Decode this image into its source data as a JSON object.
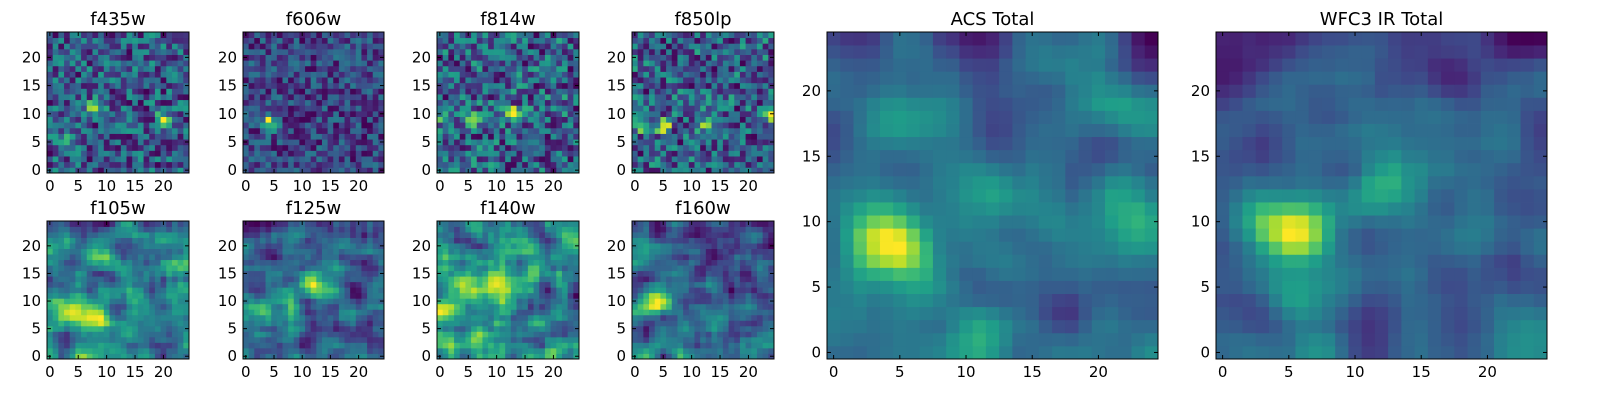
{
  "chart_data": {
    "type": "heatmap",
    "colormap": "viridis",
    "grid_size": [
      25,
      25
    ],
    "panels": [
      {
        "title": "f435w",
        "xticks": [
          0,
          5,
          10,
          15,
          20
        ],
        "yticks": [
          0,
          5,
          10,
          15,
          20
        ],
        "xlim": [
          -0.5,
          24.5
        ],
        "ylim": [
          -0.5,
          24.5
        ],
        "features": "noise",
        "peaks": [
          [
            8,
            11
          ],
          [
            20,
            9
          ],
          [
            2,
            5
          ]
        ]
      },
      {
        "title": "f606w",
        "xticks": [
          0,
          5,
          10,
          15,
          20
        ],
        "yticks": [
          0,
          5,
          10,
          15,
          20
        ],
        "xlim": [
          -0.5,
          24.5
        ],
        "ylim": [
          -0.5,
          24.5
        ],
        "features": "noise",
        "peaks": [
          [
            4,
            9
          ],
          [
            5,
            8
          ]
        ]
      },
      {
        "title": "f814w",
        "xticks": [
          0,
          5,
          10,
          15,
          20
        ],
        "yticks": [
          0,
          5,
          10,
          15,
          20
        ],
        "xlim": [
          -0.5,
          24.5
        ],
        "ylim": [
          -0.5,
          24.5
        ],
        "features": "noise",
        "peaks": [
          [
            13,
            10
          ],
          [
            6,
            9
          ],
          [
            1,
            9
          ]
        ]
      },
      {
        "title": "f850lp",
        "xticks": [
          0,
          5,
          10,
          15,
          20
        ],
        "yticks": [
          0,
          5,
          10,
          15,
          20
        ],
        "xlim": [
          -0.5,
          24.5
        ],
        "ylim": [
          -0.5,
          24.5
        ],
        "features": "noise",
        "peaks": [
          [
            5,
            8
          ],
          [
            12,
            8
          ],
          [
            24,
            10
          ],
          [
            1,
            8
          ]
        ]
      },
      {
        "title": "f105w",
        "xticks": [
          0,
          5,
          10,
          15,
          20
        ],
        "yticks": [
          0,
          5,
          10,
          15,
          20
        ],
        "xlim": [
          -0.5,
          24.5
        ],
        "ylim": [
          -0.5,
          24.5
        ],
        "features": "smooth",
        "peaks": [
          [
            7,
            8
          ],
          [
            3,
            9
          ]
        ]
      },
      {
        "title": "f125w",
        "xticks": [
          0,
          5,
          10,
          15,
          20
        ],
        "yticks": [
          0,
          5,
          10,
          15,
          20
        ],
        "xlim": [
          -0.5,
          24.5
        ],
        "ylim": [
          -0.5,
          24.5
        ],
        "features": "smooth",
        "peaks": [
          [
            12,
            13
          ],
          [
            3,
            9
          ],
          [
            8,
            8
          ]
        ]
      },
      {
        "title": "f140w",
        "xticks": [
          0,
          5,
          10,
          15,
          20
        ],
        "yticks": [
          0,
          5,
          10,
          15,
          20
        ],
        "xlim": [
          -0.5,
          24.5
        ],
        "ylim": [
          -0.5,
          24.5
        ],
        "features": "smooth",
        "peaks": [
          [
            1,
            9
          ],
          [
            9,
            12
          ],
          [
            4,
            14
          ]
        ]
      },
      {
        "title": "f160w",
        "xticks": [
          0,
          5,
          10,
          15,
          20
        ],
        "yticks": [
          0,
          5,
          10,
          15,
          20
        ],
        "xlim": [
          -0.5,
          24.5
        ],
        "ylim": [
          -0.5,
          24.5
        ],
        "features": "smooth",
        "peaks": [
          [
            4,
            10
          ],
          [
            2,
            9
          ]
        ]
      },
      {
        "title": "ACS Total",
        "xticks": [
          0,
          5,
          10,
          15,
          20
        ],
        "yticks": [
          0,
          5,
          10,
          15,
          20
        ],
        "xlim": [
          -0.5,
          24.5
        ],
        "ylim": [
          -0.5,
          24.5
        ],
        "features": "blocky",
        "peaks": [
          [
            5,
            8
          ],
          [
            2,
            9
          ],
          [
            12,
            13
          ],
          [
            23,
            10
          ]
        ]
      },
      {
        "title": "WFC3 IR Total",
        "xticks": [
          0,
          5,
          10,
          15,
          20
        ],
        "yticks": [
          0,
          5,
          10,
          15,
          20
        ],
        "xlim": [
          -0.5,
          24.5
        ],
        "ylim": [
          -0.5,
          24.5
        ],
        "features": "blocky",
        "peaks": [
          [
            6,
            9
          ],
          [
            3,
            10
          ],
          [
            12,
            13
          ],
          [
            5,
            5
          ]
        ]
      }
    ]
  }
}
